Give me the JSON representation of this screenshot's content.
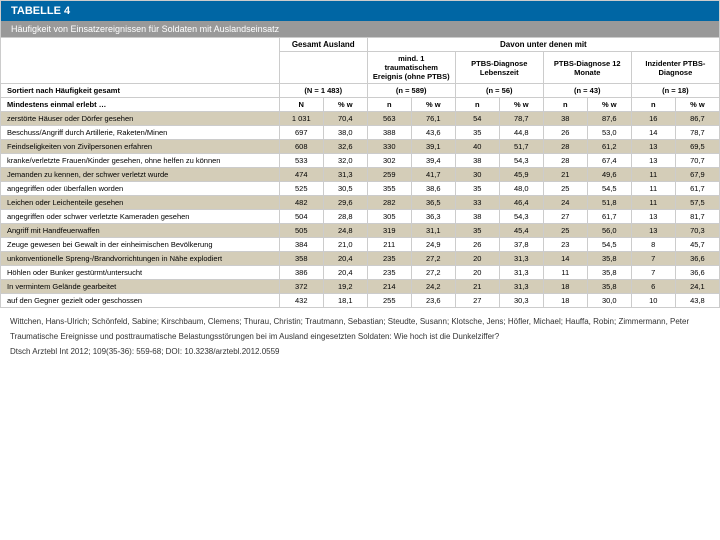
{
  "title": "TABELLE 4",
  "subtitle": "Häufigkeit von Einsatzereignissen für Soldaten mit Auslandseinsatz",
  "colors": {
    "title_bg": "#0066a4",
    "subtitle_bg": "#999999",
    "alt_row_bg": "#d4cdb8",
    "border": "#cccccc"
  },
  "headers": {
    "gesamt": "Gesamt Ausland",
    "davon": "Davon unter denen mit",
    "groups": [
      "mind. 1 traumatischem Ereignis (ohne PTBS)",
      "PTBS-Diagnose Lebenszeit",
      "PTBS-Diagnose 12 Monate",
      "Inzidenter PTBS-Diagnose"
    ],
    "sortiert": "Sortiert nach Häufigkeit gesamt",
    "ns": [
      "(N = 1 483)",
      "(n = 589)",
      "(n = 56)",
      "(n = 43)",
      "(n = 18)"
    ],
    "erlebt": "Mindestens einmal erlebt …",
    "N": "N",
    "pw": "% w",
    "n": "n"
  },
  "rows": [
    {
      "label": "zerstörte Häuser oder Dörfer gesehen",
      "cells": [
        "1 031",
        "70,4",
        "563",
        "76,1",
        "54",
        "78,7",
        "38",
        "87,6",
        "16",
        "86,7"
      ],
      "alt": true
    },
    {
      "label": "Beschuss/Angriff durch Artillerie, Raketen/Minen",
      "cells": [
        "697",
        "38,0",
        "388",
        "43,6",
        "35",
        "44,8",
        "26",
        "53,0",
        "14",
        "78,7"
      ],
      "alt": false
    },
    {
      "label": "Feindseligkeiten von Zivilpersonen erfahren",
      "cells": [
        "608",
        "32,6",
        "330",
        "39,1",
        "40",
        "51,7",
        "28",
        "61,2",
        "13",
        "69,5"
      ],
      "alt": true
    },
    {
      "label": "kranke/verletzte Frauen/Kinder gesehen, ohne helfen zu können",
      "cells": [
        "533",
        "32,0",
        "302",
        "39,4",
        "38",
        "54,3",
        "28",
        "67,4",
        "13",
        "70,7"
      ],
      "alt": false
    },
    {
      "label": "Jemanden zu kennen, der schwer verletzt wurde",
      "cells": [
        "474",
        "31,3",
        "259",
        "41,7",
        "30",
        "45,9",
        "21",
        "49,6",
        "11",
        "67,9"
      ],
      "alt": true
    },
    {
      "label": "angegriffen oder überfallen worden",
      "cells": [
        "525",
        "30,5",
        "355",
        "38,6",
        "35",
        "48,0",
        "25",
        "54,5",
        "11",
        "61,7"
      ],
      "alt": false
    },
    {
      "label": "Leichen oder Leichenteile gesehen",
      "cells": [
        "482",
        "29,6",
        "282",
        "36,5",
        "33",
        "46,4",
        "24",
        "51,8",
        "11",
        "57,5"
      ],
      "alt": true
    },
    {
      "label": "angegriffen oder schwer verletzte Kameraden gesehen",
      "cells": [
        "504",
        "28,8",
        "305",
        "36,3",
        "38",
        "54,3",
        "27",
        "61,7",
        "13",
        "81,7"
      ],
      "alt": false
    },
    {
      "label": "Angriff mit Handfeuerwaffen",
      "cells": [
        "505",
        "24,8",
        "319",
        "31,1",
        "35",
        "45,4",
        "25",
        "56,0",
        "13",
        "70,3"
      ],
      "alt": true
    },
    {
      "label": "Zeuge gewesen bei Gewalt in der einheimischen Bevölkerung",
      "cells": [
        "384",
        "21,0",
        "211",
        "24,9",
        "26",
        "37,8",
        "23",
        "54,5",
        "8",
        "45,7"
      ],
      "alt": false
    },
    {
      "label": "unkonventionelle Spreng-/Brandvorrichtungen in Nähe explodiert",
      "cells": [
        "358",
        "20,4",
        "235",
        "27,2",
        "20",
        "31,3",
        "14",
        "35,8",
        "7",
        "36,6"
      ],
      "alt": true
    },
    {
      "label": "Höhlen oder Bunker gestürmt/untersucht",
      "cells": [
        "386",
        "20,4",
        "235",
        "27,2",
        "20",
        "31,3",
        "11",
        "35,8",
        "7",
        "36,6"
      ],
      "alt": false
    },
    {
      "label": "In vermintem Gelände gearbeitet",
      "cells": [
        "372",
        "19,2",
        "214",
        "24,2",
        "21",
        "31,3",
        "18",
        "35,8",
        "6",
        "24,1"
      ],
      "alt": true
    },
    {
      "label": "auf den Gegner gezielt oder geschossen",
      "cells": [
        "432",
        "18,1",
        "255",
        "23,6",
        "27",
        "30,3",
        "18",
        "30,0",
        "10",
        "43,8"
      ],
      "alt": false
    }
  ],
  "caption": {
    "authors": "Wittchen, Hans-Ulrich; Schönfeld, Sabine; Kirschbaum, Clemens; Thurau, Christin; Trautmann, Sebastian; Steudte, Susann; Klotsche, Jens; Höfler, Michael; Hauffa, Robin; Zimmermann, Peter",
    "title": "Traumatische Ereignisse und posttraumatische Belastungsstörungen bei im Ausland eingesetzten Soldaten: Wie hoch ist die Dunkelziffer?",
    "ref": "Dtsch Arztebl Int 2012; 109(35-36): 559-68; DOI: 10.3238/arztebl.2012.0559"
  }
}
